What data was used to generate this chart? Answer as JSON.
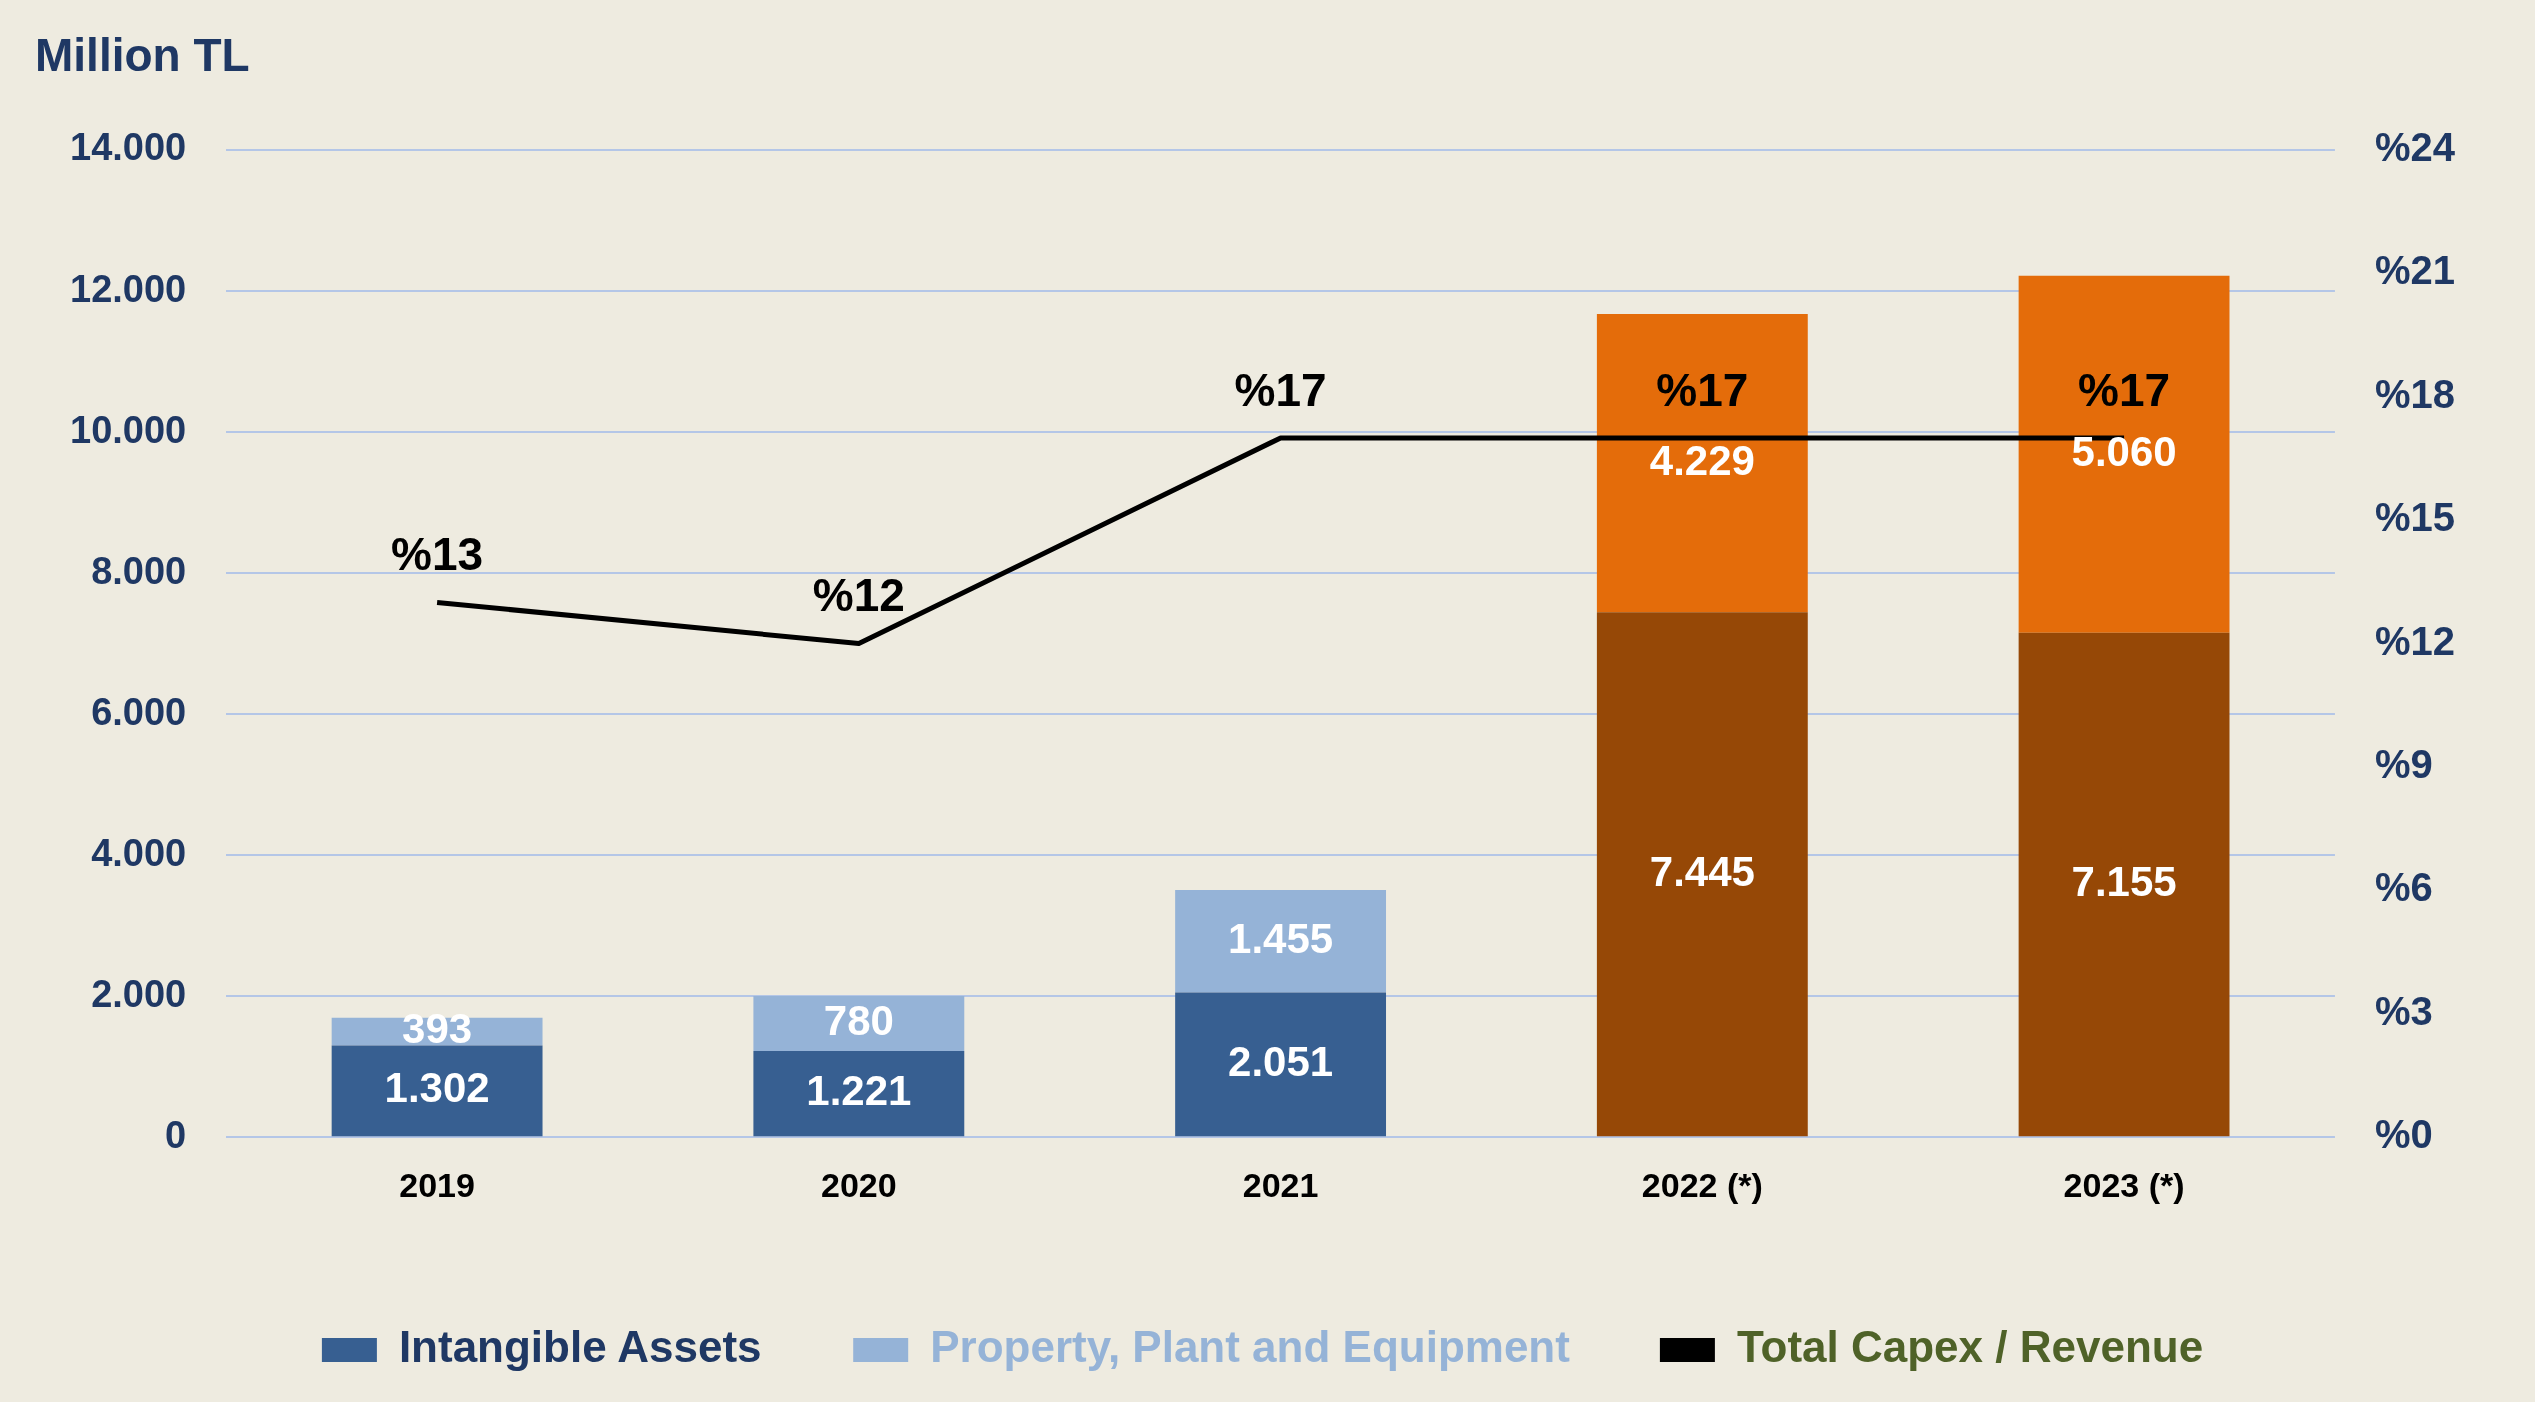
{
  "chart_data": {
    "type": "bar",
    "stacked": true,
    "ylabel": "Million TL",
    "categories": [
      "2019",
      "2020",
      "2021",
      "2022 (*)",
      "2023 (*)"
    ],
    "series": [
      {
        "name": "Intangible Assets",
        "color": "#375f91",
        "colors": [
          "#375f91",
          "#375f91",
          "#375f91",
          "#964806",
          "#964806"
        ],
        "values": [
          1302,
          1221,
          2051,
          7445,
          7155
        ],
        "value_labels": [
          "1.302",
          "1.221",
          "2.051",
          "7.445",
          "7.155"
        ]
      },
      {
        "name": "Property, Plant and Equipment",
        "color": "#95b3d7",
        "colors": [
          "#95b3d7",
          "#95b3d7",
          "#95b3d7",
          "#e46c0a",
          "#e46c0a"
        ],
        "values": [
          393,
          780,
          1455,
          4229,
          5060
        ],
        "value_labels": [
          "393",
          "780",
          "1.455",
          "4.229",
          "5.060"
        ]
      },
      {
        "name": "Total Capex / Revenue",
        "type": "line",
        "axis": "y2",
        "color": "#000000",
        "values": [
          13,
          12,
          17,
          17,
          17
        ],
        "value_labels": [
          "%13",
          "%12",
          "%17",
          "%17",
          "%17"
        ]
      }
    ],
    "ylim": [
      0,
      14000
    ],
    "yticks": [
      {
        "value": 0,
        "label": "0"
      },
      {
        "value": 2000,
        "label": "2.000"
      },
      {
        "value": 4000,
        "label": "4.000"
      },
      {
        "value": 6000,
        "label": "6.000"
      },
      {
        "value": 8000,
        "label": "8.000"
      },
      {
        "value": 10000,
        "label": "10.000"
      },
      {
        "value": 12000,
        "label": "12.000"
      },
      {
        "value": 14000,
        "label": "14.000"
      }
    ],
    "y2lim": [
      0,
      24
    ],
    "y2ticks": [
      {
        "value": 0,
        "label": "%0"
      },
      {
        "value": 3,
        "label": "%3"
      },
      {
        "value": 6,
        "label": "%6"
      },
      {
        "value": 9,
        "label": "%9"
      },
      {
        "value": 12,
        "label": "%12"
      },
      {
        "value": 15,
        "label": "%15"
      },
      {
        "value": 18,
        "label": "%18"
      },
      {
        "value": 21,
        "label": "%21"
      },
      {
        "value": 24,
        "label": "%24"
      }
    ],
    "grid": "y",
    "legend": "bottom",
    "marker": "none",
    "line_style": "solid"
  }
}
